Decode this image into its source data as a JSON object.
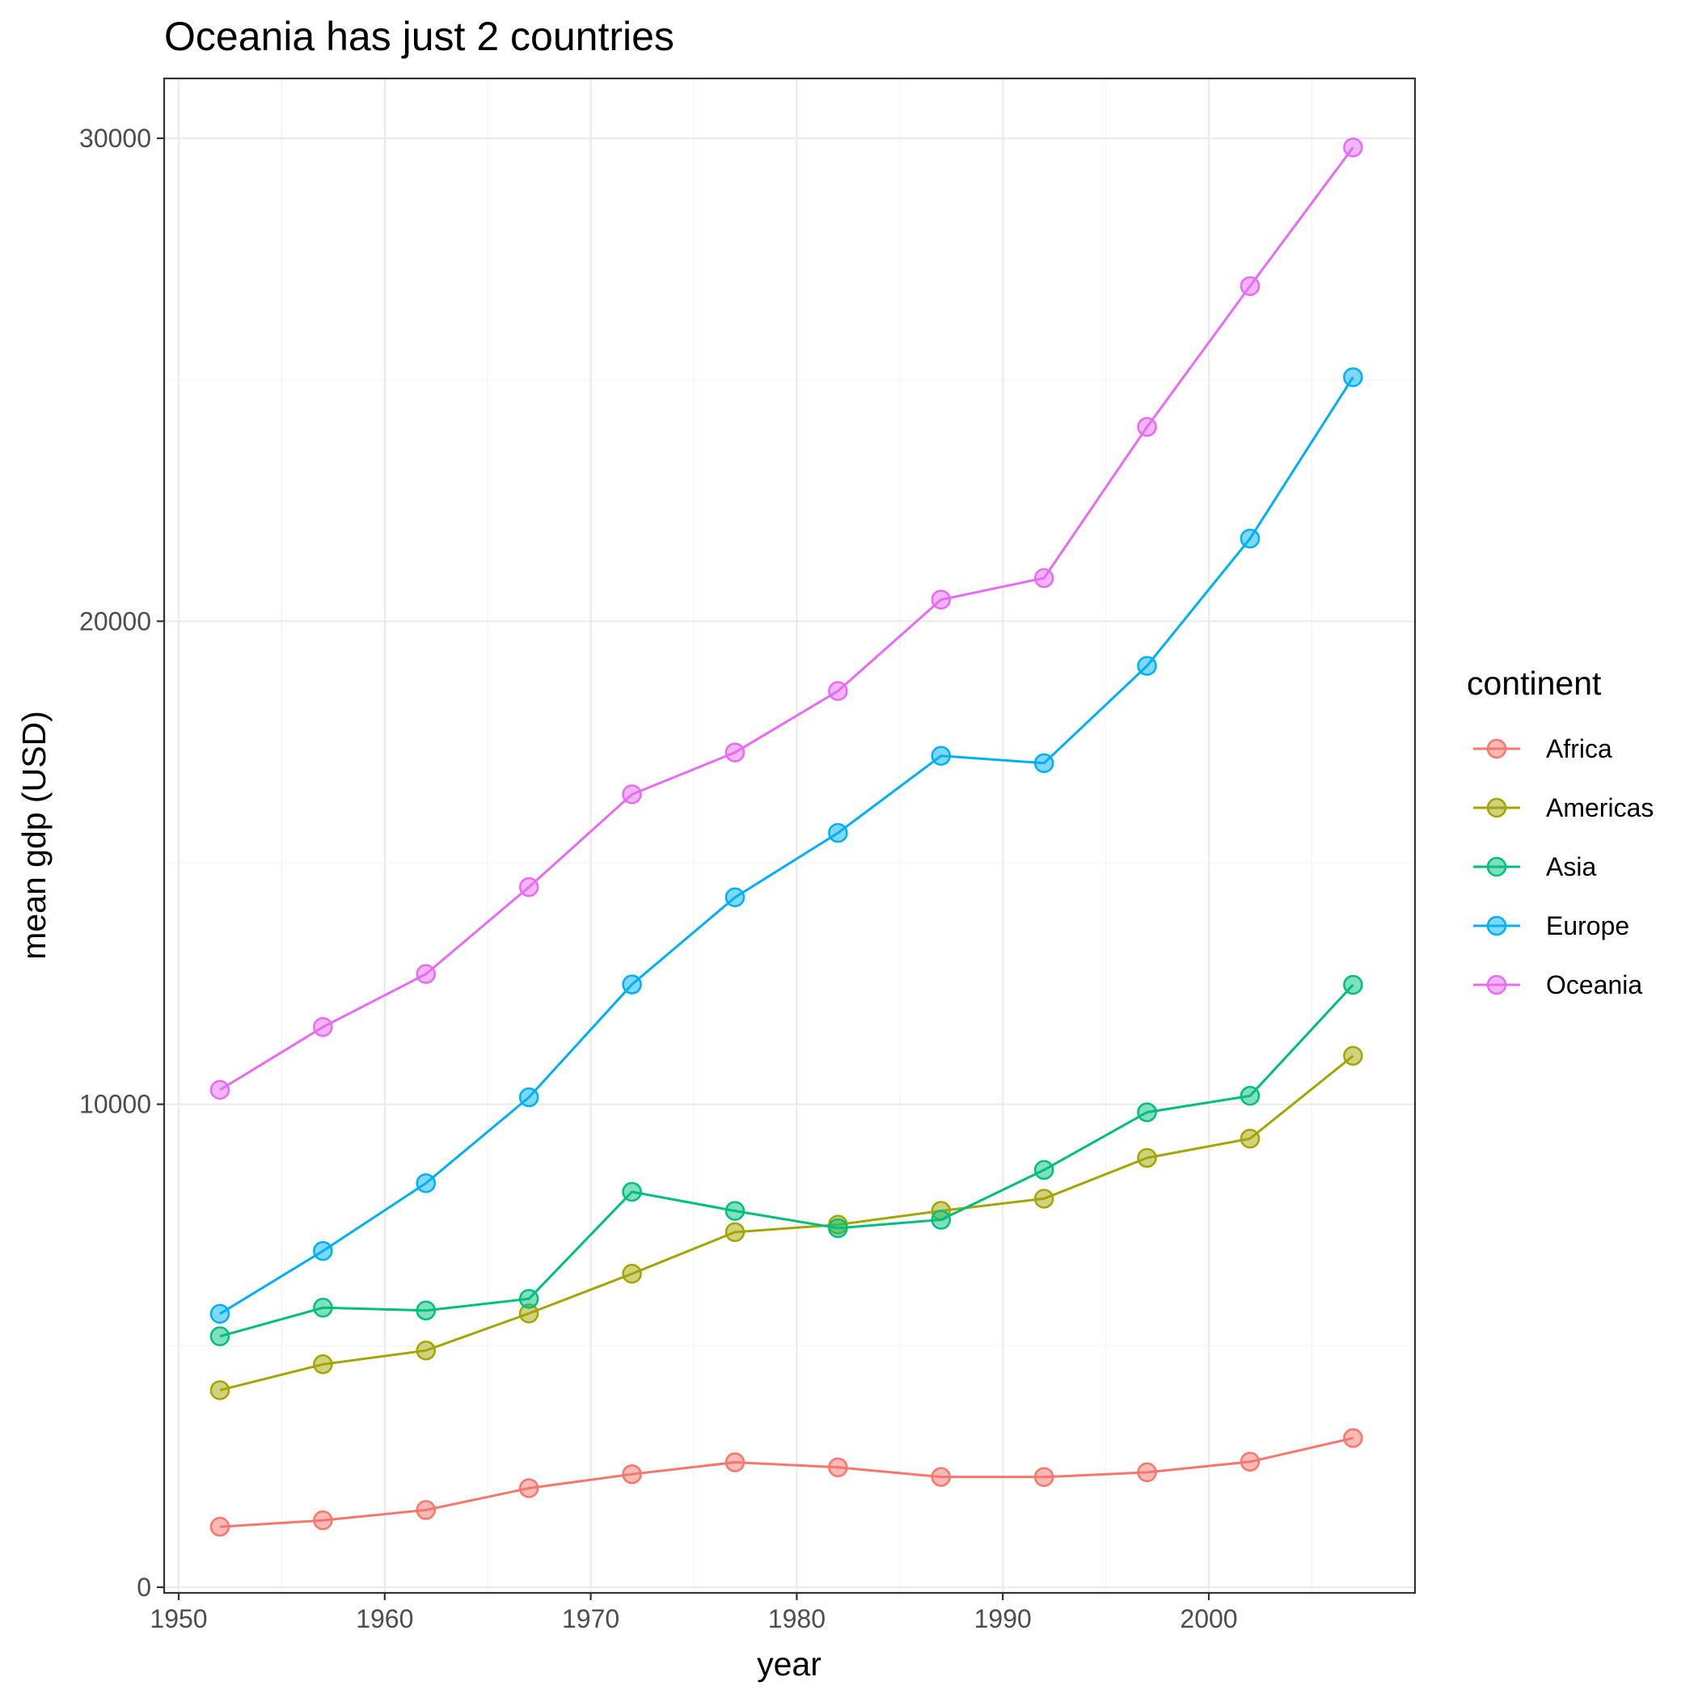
{
  "chart_data": {
    "type": "line",
    "title": "Oceania has just 2 countries",
    "xlabel": "year",
    "ylabel": "mean gdp (USD)",
    "xlim": [
      1950,
      2010
    ],
    "ylim": [
      0,
      30000
    ],
    "x_ticks": [
      1950,
      1960,
      1970,
      1980,
      1990,
      2000
    ],
    "y_ticks": [
      0,
      10000,
      20000,
      30000
    ],
    "grid": true,
    "legend": {
      "title": "continent",
      "position": "right"
    },
    "x": [
      1952,
      1957,
      1962,
      1967,
      1972,
      1977,
      1982,
      1987,
      1992,
      1997,
      2002,
      2007
    ],
    "series": [
      {
        "name": "Africa",
        "color": "#F8766D",
        "values": [
          1253,
          1385,
          1598,
          2051,
          2340,
          2586,
          2482,
          2283,
          2282,
          2379,
          2599,
          3089
        ]
      },
      {
        "name": "Americas",
        "color": "#A3A500",
        "values": [
          4079,
          4616,
          4901,
          5668,
          6491,
          7352,
          7507,
          7793,
          8045,
          8889,
          9288,
          11003
        ]
      },
      {
        "name": "Asia",
        "color": "#00BF7D",
        "values": [
          5195,
          5788,
          5729,
          5971,
          8187,
          7791,
          7434,
          7608,
          8640,
          9834,
          10174,
          12473
        ]
      },
      {
        "name": "Europe",
        "color": "#00B0F6",
        "values": [
          5661,
          6963,
          8365,
          10144,
          12480,
          14284,
          15618,
          17214,
          17062,
          19077,
          21712,
          25054
        ]
      },
      {
        "name": "Oceania",
        "color": "#E76BF3",
        "values": [
          10298,
          11599,
          12696,
          14496,
          16417,
          17284,
          18555,
          20448,
          20894,
          24024,
          26939,
          29810
        ]
      }
    ]
  }
}
